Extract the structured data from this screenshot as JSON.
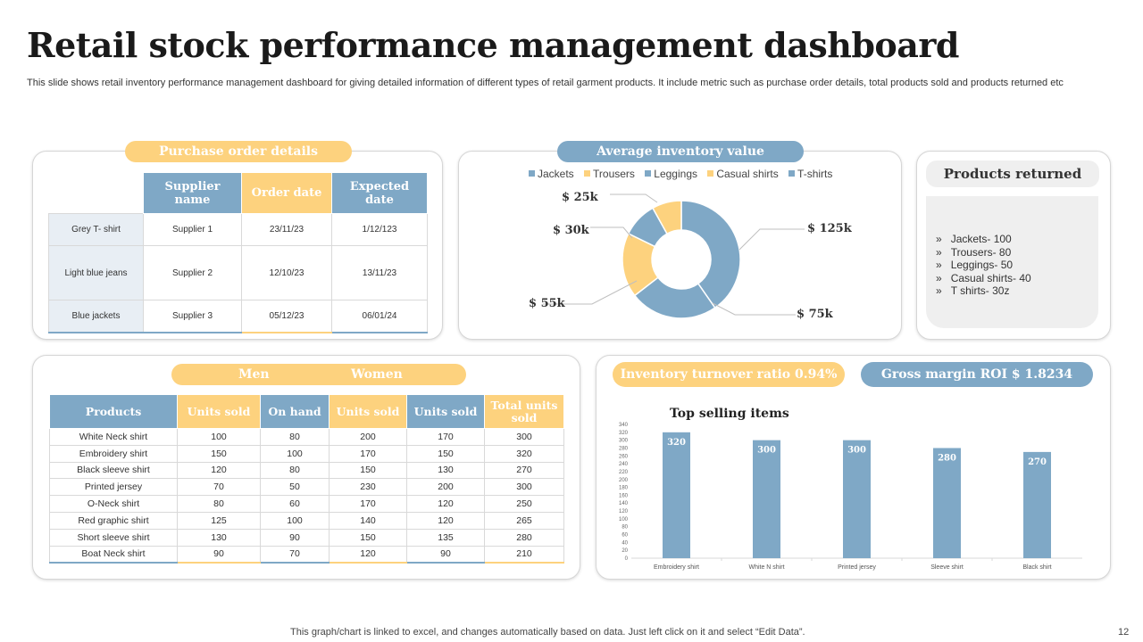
{
  "title": "Retail stock performance management dashboard",
  "subtitle": "This slide shows retail inventory performance management dashboard for giving detailed information of different types of retail garment products. It include metric such as purchase order details, total products sold and products returned etc",
  "purchase_orders": {
    "label": "Purchase order details",
    "headers": [
      "Supplier name",
      "Order date",
      "Expected date"
    ],
    "rows": [
      [
        "Grey T- shirt",
        "Supplier 1",
        "23/11/23",
        "1/12/123"
      ],
      [
        "Light blue jeans",
        "Supplier 2",
        "12/10/23",
        "13/11/23"
      ],
      [
        "Blue jackets",
        "Supplier 3",
        "05/12/23",
        "06/01/24"
      ]
    ]
  },
  "inventory": {
    "label": "Average inventory value",
    "legend": [
      "Jackets",
      "Trousers",
      "Leggings",
      "Casual shirts",
      "T-shirts"
    ],
    "value_labels": [
      "$ 25k",
      "$ 30k",
      "$ 55k",
      "$ 125k",
      "$ 75k"
    ],
    "colors": [
      "#7fa8c6",
      "#fdd27e",
      "#7fa8c6",
      "#fdd27e",
      "#7fa8c6"
    ]
  },
  "returns": {
    "label": "Products returned",
    "items": [
      "Jackets- 100",
      "Trousers- 80",
      "Leggings- 50",
      "Casual shirts- 40",
      "T shirts- 30z"
    ]
  },
  "products": {
    "men_label": "Men",
    "women_label": "Women",
    "headers": [
      "Products",
      "Units sold",
      "On hand",
      "Units sold",
      "Units sold",
      "Total units sold"
    ],
    "rows": [
      [
        "White Neck shirt",
        "100",
        "80",
        "200",
        "170",
        "300"
      ],
      [
        "Embroidery shirt",
        "150",
        "100",
        "170",
        "150",
        "320"
      ],
      [
        "Black sleeve shirt",
        "120",
        "80",
        "150",
        "130",
        "270"
      ],
      [
        "Printed jersey",
        "70",
        "50",
        "230",
        "200",
        "300"
      ],
      [
        "O-Neck shirt",
        "80",
        "60",
        "170",
        "120",
        "250"
      ],
      [
        "Red graphic shirt",
        "125",
        "100",
        "140",
        "120",
        "265"
      ],
      [
        "Short sleeve shirt",
        "130",
        "90",
        "150",
        "135",
        "280"
      ],
      [
        "Boat Neck shirt",
        "90",
        "70",
        "120",
        "90",
        "210"
      ]
    ]
  },
  "kpis": {
    "turnover": "Inventory turnover ratio 0.94%",
    "roi": "Gross margin ROI $ 1.8234"
  },
  "chart_data": [
    {
      "type": "pie",
      "title": "Average inventory value",
      "categories": [
        "Jackets",
        "Trousers",
        "Leggings",
        "Casual shirts",
        "T-shirts"
      ],
      "values": [
        125,
        75,
        55,
        30,
        25
      ],
      "value_labels": [
        "$ 125k",
        "$ 75k",
        "$ 55k",
        "$ 30k",
        "$ 25k"
      ],
      "colors": [
        "#7fa8c6",
        "#7fa8c6",
        "#fdd27e",
        "#7fa8c6",
        "#fdd27e"
      ],
      "donut": true
    },
    {
      "type": "bar",
      "title": "Top selling items",
      "categories": [
        "Embroidery shirt",
        "White N shirt",
        "Printed jersey",
        "Sleeve shirt",
        "Black shirt"
      ],
      "values": [
        320,
        300,
        300,
        280,
        270
      ],
      "ylim": [
        0,
        340
      ],
      "yticks": [
        0,
        20,
        40,
        60,
        80,
        100,
        120,
        140,
        160,
        180,
        200,
        220,
        240,
        260,
        280,
        300,
        320,
        340
      ],
      "bar_color": "#7fa8c6",
      "xlabel": "",
      "ylabel": ""
    }
  ],
  "footer": "This graph/chart is linked to excel,  and changes automatically based on data. Just left click on it and select “Edit Data”.",
  "page_number": "12"
}
